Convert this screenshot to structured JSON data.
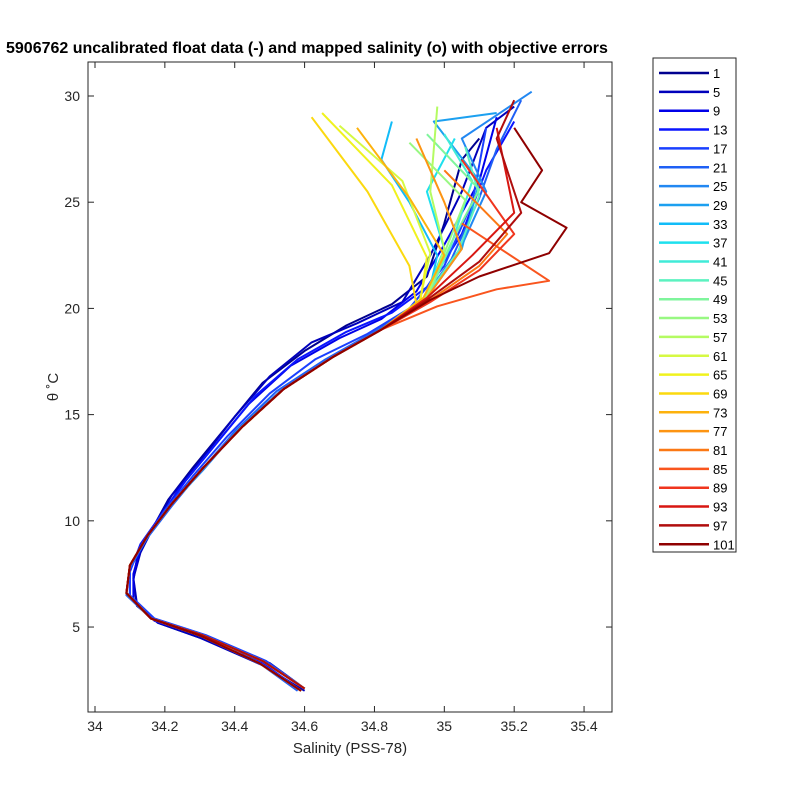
{
  "chart_data": {
    "type": "line",
    "title": "5906762 uncalibrated float data (-) and mapped salinity (o) with objective errors",
    "xlabel": "Salinity (PSS-78)",
    "ylabel": "θ ˚C",
    "xlim": [
      33.98,
      35.48
    ],
    "ylim": [
      1.0,
      31.6
    ],
    "xticks": [
      34,
      34.2,
      34.4,
      34.6,
      34.8,
      35,
      35.2,
      35.4
    ],
    "xtick_labels": [
      "34",
      "34.2",
      "34.4",
      "34.6",
      "34.8",
      "35",
      "35.2",
      "35.4"
    ],
    "yticks": [
      5,
      10,
      15,
      20,
      25,
      30
    ],
    "ytick_labels": [
      "5",
      "10",
      "15",
      "20",
      "25",
      "30"
    ],
    "grid": false,
    "legend_position": "outside-right",
    "legend_labels": [
      "1",
      "5",
      "9",
      "13",
      "17",
      "21",
      "25",
      "29",
      "33",
      "37",
      "41",
      "45",
      "49",
      "53",
      "57",
      "61",
      "65",
      "69",
      "73",
      "77",
      "81",
      "85",
      "89",
      "93",
      "97",
      "101"
    ],
    "series_colors": [
      "#00008f",
      "#0000bb",
      "#0000e8",
      "#0a15ff",
      "#1a40ff",
      "#1f60f5",
      "#2288f2",
      "#1ca0f0",
      "#12bcf8",
      "#1ee0ee",
      "#40ebd8",
      "#5cf2c0",
      "#7ff59c",
      "#98f882",
      "#b4fb62",
      "#d6f943",
      "#f0f21e",
      "#fbd90f",
      "#fdb20c",
      "#fd9412",
      "#fb7814",
      "#f9551e",
      "#f0351e",
      "#d81712",
      "#b00d0d",
      "#8f0000"
    ],
    "series": [
      {
        "name": "1",
        "x": [
          34.6,
          34.5,
          34.3,
          34.18,
          34.12,
          34.11,
          34.12,
          34.16,
          34.21,
          34.28,
          34.38,
          34.48,
          34.6,
          34.72,
          34.85,
          34.95,
          35.0,
          35.05,
          35.1
        ],
        "y": [
          2.1,
          3.3,
          4.5,
          5.2,
          6.0,
          7.2,
          8.2,
          9.5,
          11.0,
          12.5,
          14.5,
          16.5,
          18.0,
          19.2,
          20.2,
          21.5,
          24.0,
          27.0,
          28.0
        ]
      },
      {
        "name": "5",
        "x": [
          34.6,
          34.48,
          34.3,
          34.18,
          34.12,
          34.11,
          34.13,
          34.17,
          34.22,
          34.3,
          34.4,
          34.5,
          34.62,
          34.75,
          34.88,
          34.96,
          35.05,
          35.12,
          35.2
        ],
        "y": [
          2.0,
          3.2,
          4.5,
          5.2,
          6.1,
          7.3,
          8.5,
          9.8,
          11.2,
          12.8,
          14.9,
          16.8,
          18.4,
          19.3,
          20.3,
          22.5,
          25.5,
          28.5,
          29.5
        ]
      },
      {
        "name": "9",
        "x": [
          34.58,
          34.47,
          34.3,
          34.17,
          34.11,
          34.11,
          34.13,
          34.18,
          34.24,
          34.33,
          34.44,
          34.56,
          34.7,
          34.82,
          34.92,
          35.0,
          35.1,
          35.15
        ],
        "y": [
          2.1,
          3.4,
          4.6,
          5.3,
          6.3,
          7.5,
          8.7,
          10.0,
          11.5,
          13.3,
          15.5,
          17.3,
          18.6,
          19.5,
          20.8,
          23.0,
          26.0,
          29.0
        ]
      },
      {
        "name": "13",
        "x": [
          34.59,
          34.48,
          34.31,
          34.17,
          34.1,
          34.1,
          34.13,
          34.19,
          34.26,
          34.35,
          34.46,
          34.58,
          34.72,
          34.85,
          34.95,
          35.05,
          35.12,
          35.2
        ],
        "y": [
          2.0,
          3.3,
          4.6,
          5.3,
          6.4,
          7.6,
          8.9,
          10.3,
          11.9,
          13.7,
          15.9,
          17.6,
          18.9,
          19.8,
          21.0,
          23.5,
          26.5,
          28.8
        ]
      },
      {
        "name": "17",
        "x": [
          34.6,
          34.49,
          34.32,
          34.17,
          34.1,
          34.1,
          34.14,
          34.2,
          34.28,
          34.38,
          34.5,
          34.63,
          34.78,
          34.9,
          35.0,
          35.08,
          35.12
        ],
        "y": [
          2.1,
          3.4,
          4.6,
          5.4,
          6.5,
          7.7,
          9.0,
          10.5,
          12.1,
          14.0,
          16.0,
          17.6,
          18.8,
          20.0,
          22.0,
          25.0,
          28.5
        ]
      },
      {
        "name": "21",
        "x": [
          34.58,
          34.47,
          34.3,
          34.16,
          34.09,
          34.1,
          34.15,
          34.22,
          34.3,
          34.4,
          34.52,
          34.66,
          34.8,
          34.93,
          35.02,
          35.1,
          35.15,
          35.22
        ],
        "y": [
          2.0,
          3.3,
          4.6,
          5.4,
          6.5,
          7.8,
          9.2,
          10.7,
          12.3,
          14.2,
          16.1,
          17.6,
          18.9,
          20.2,
          22.3,
          25.2,
          27.5,
          29.8
        ]
      },
      {
        "name": "25",
        "x": [
          34.6,
          34.48,
          34.31,
          34.16,
          34.09,
          34.1,
          34.15,
          34.22,
          34.31,
          34.41,
          34.53,
          34.67,
          34.81,
          34.94,
          35.04,
          35.12,
          35.05,
          35.25
        ],
        "y": [
          2.1,
          3.4,
          4.6,
          5.4,
          6.6,
          7.9,
          9.3,
          10.8,
          12.4,
          14.3,
          16.1,
          17.6,
          18.9,
          20.4,
          22.6,
          25.5,
          28.0,
          30.2
        ]
      },
      {
        "name": "29",
        "x": [
          34.59,
          34.47,
          34.3,
          34.16,
          34.09,
          34.1,
          34.15,
          34.22,
          34.31,
          34.42,
          34.54,
          34.68,
          34.82,
          34.95,
          35.05,
          35.1,
          34.97,
          35.15
        ],
        "y": [
          2.0,
          3.3,
          4.6,
          5.4,
          6.6,
          7.9,
          9.3,
          10.8,
          12.5,
          14.4,
          16.2,
          17.7,
          19.0,
          20.5,
          22.8,
          26.0,
          28.8,
          29.2
        ]
      },
      {
        "name": "33",
        "x": [
          34.6,
          34.48,
          34.31,
          34.16,
          34.09,
          34.1,
          34.15,
          34.22,
          34.31,
          34.42,
          34.54,
          34.68,
          34.82,
          34.95,
          34.98,
          34.9,
          34.82,
          34.85
        ],
        "y": [
          2.1,
          3.4,
          4.6,
          5.4,
          6.6,
          7.9,
          9.3,
          10.8,
          12.5,
          14.4,
          16.2,
          17.7,
          19.0,
          20.3,
          22.5,
          25.0,
          27.0,
          28.8
        ]
      },
      {
        "name": "37",
        "x": [
          34.59,
          34.47,
          34.3,
          34.16,
          34.09,
          34.1,
          34.15,
          34.22,
          34.31,
          34.42,
          34.54,
          34.68,
          34.82,
          34.94,
          35.0,
          34.95,
          35.03
        ],
        "y": [
          2.0,
          3.3,
          4.6,
          5.4,
          6.6,
          7.9,
          9.3,
          10.8,
          12.5,
          14.4,
          16.2,
          17.7,
          19.0,
          20.4,
          22.8,
          25.5,
          28.0
        ]
      },
      {
        "name": "41",
        "x": [
          34.6,
          34.48,
          34.31,
          34.16,
          34.09,
          34.1,
          34.15,
          34.22,
          34.31,
          34.42,
          34.54,
          34.68,
          34.82,
          34.95,
          35.02,
          35.08,
          35.0
        ],
        "y": [
          2.1,
          3.4,
          4.6,
          5.4,
          6.6,
          7.9,
          9.3,
          10.8,
          12.5,
          14.4,
          16.2,
          17.7,
          19.0,
          20.5,
          23.0,
          26.0,
          28.2
        ]
      },
      {
        "name": "45",
        "x": [
          34.59,
          34.47,
          34.3,
          34.16,
          34.09,
          34.1,
          34.15,
          34.22,
          34.31,
          34.42,
          34.54,
          34.68,
          34.82,
          34.94,
          35.04,
          35.1,
          35.06
        ],
        "y": [
          2.0,
          3.3,
          4.6,
          5.4,
          6.6,
          7.9,
          9.3,
          10.8,
          12.5,
          14.4,
          16.2,
          17.7,
          19.0,
          20.4,
          22.7,
          25.3,
          27.6
        ]
      },
      {
        "name": "49",
        "x": [
          34.6,
          34.48,
          34.31,
          34.16,
          34.09,
          34.1,
          34.15,
          34.22,
          34.31,
          34.42,
          34.54,
          34.68,
          34.82,
          34.95,
          35.02,
          35.1,
          34.95
        ],
        "y": [
          2.1,
          3.4,
          4.6,
          5.4,
          6.6,
          7.9,
          9.3,
          10.8,
          12.5,
          14.4,
          16.2,
          17.7,
          19.0,
          20.5,
          23.1,
          25.6,
          28.2
        ]
      },
      {
        "name": "53",
        "x": [
          34.59,
          34.47,
          34.3,
          34.16,
          34.09,
          34.1,
          34.15,
          34.22,
          34.31,
          34.42,
          34.54,
          34.68,
          34.82,
          34.94,
          35.0,
          35.06,
          34.9
        ],
        "y": [
          2.0,
          3.3,
          4.6,
          5.4,
          6.6,
          7.9,
          9.3,
          10.8,
          12.5,
          14.4,
          16.2,
          17.7,
          19.0,
          20.4,
          22.6,
          25.1,
          27.8
        ]
      },
      {
        "name": "57",
        "x": [
          34.6,
          34.48,
          34.31,
          34.16,
          34.09,
          34.1,
          34.15,
          34.22,
          34.31,
          34.42,
          34.54,
          34.68,
          34.82,
          34.95,
          35.0,
          34.96,
          34.98
        ],
        "y": [
          2.1,
          3.4,
          4.6,
          5.4,
          6.6,
          7.9,
          9.3,
          10.8,
          12.5,
          14.4,
          16.2,
          17.7,
          19.0,
          20.5,
          22.8,
          25.5,
          29.5
        ]
      },
      {
        "name": "61",
        "x": [
          34.59,
          34.47,
          34.3,
          34.16,
          34.09,
          34.1,
          34.15,
          34.22,
          34.31,
          34.42,
          34.54,
          34.68,
          34.82,
          34.93,
          34.96,
          34.88,
          34.7
        ],
        "y": [
          2.0,
          3.3,
          4.6,
          5.4,
          6.6,
          7.9,
          9.3,
          10.8,
          12.5,
          14.4,
          16.2,
          17.7,
          19.0,
          20.4,
          22.6,
          26.0,
          28.6
        ]
      },
      {
        "name": "65",
        "x": [
          34.6,
          34.48,
          34.31,
          34.16,
          34.09,
          34.1,
          34.15,
          34.22,
          34.31,
          34.42,
          34.54,
          34.68,
          34.82,
          34.93,
          34.95,
          34.85,
          34.65
        ],
        "y": [
          2.1,
          3.4,
          4.6,
          5.4,
          6.6,
          7.9,
          9.3,
          10.8,
          12.5,
          14.4,
          16.2,
          17.7,
          19.0,
          20.2,
          22.4,
          25.8,
          29.2
        ]
      },
      {
        "name": "69",
        "x": [
          34.59,
          34.47,
          34.3,
          34.16,
          34.09,
          34.1,
          34.15,
          34.22,
          34.31,
          34.42,
          34.54,
          34.68,
          34.82,
          34.92,
          34.9,
          34.78,
          34.62
        ],
        "y": [
          2.0,
          3.3,
          4.6,
          5.4,
          6.6,
          7.9,
          9.3,
          10.8,
          12.5,
          14.4,
          16.2,
          17.7,
          19.0,
          20.2,
          22.0,
          25.5,
          29.0
        ]
      },
      {
        "name": "73",
        "x": [
          34.6,
          34.48,
          34.31,
          34.16,
          34.09,
          34.1,
          34.15,
          34.22,
          34.31,
          34.42,
          34.54,
          34.68,
          34.82,
          34.94,
          35.0,
          34.9,
          34.75
        ],
        "y": [
          2.1,
          3.4,
          4.6,
          5.4,
          6.6,
          7.9,
          9.3,
          10.8,
          12.5,
          14.4,
          16.2,
          17.7,
          19.0,
          20.5,
          22.5,
          25.2,
          28.5
        ]
      },
      {
        "name": "77",
        "x": [
          34.59,
          34.47,
          34.3,
          34.16,
          34.09,
          34.1,
          34.15,
          34.22,
          34.31,
          34.42,
          34.54,
          34.68,
          34.82,
          34.95,
          35.05,
          35.0,
          34.92
        ],
        "y": [
          2.0,
          3.3,
          4.6,
          5.4,
          6.6,
          7.9,
          9.3,
          10.8,
          12.5,
          14.4,
          16.2,
          17.7,
          19.0,
          20.5,
          22.8,
          25.0,
          28.0
        ]
      },
      {
        "name": "81",
        "x": [
          34.6,
          34.48,
          34.31,
          34.16,
          34.09,
          34.1,
          34.15,
          34.22,
          34.31,
          34.42,
          34.54,
          34.68,
          34.82,
          34.96,
          35.1,
          35.18,
          35.0
        ],
        "y": [
          2.1,
          3.4,
          4.6,
          5.4,
          6.6,
          7.9,
          9.3,
          10.8,
          12.5,
          14.4,
          16.2,
          17.7,
          19.0,
          20.4,
          22.0,
          23.5,
          26.5
        ]
      },
      {
        "name": "85",
        "x": [
          34.59,
          34.47,
          34.3,
          34.16,
          34.09,
          34.1,
          34.15,
          34.22,
          34.31,
          34.42,
          34.54,
          34.68,
          34.82,
          34.98,
          35.15,
          35.3,
          35.05
        ],
        "y": [
          2.0,
          3.3,
          4.6,
          5.4,
          6.6,
          7.9,
          9.3,
          10.8,
          12.5,
          14.4,
          16.2,
          17.7,
          19.0,
          20.1,
          20.9,
          21.3,
          24.0
        ]
      },
      {
        "name": "89",
        "x": [
          34.6,
          34.48,
          34.31,
          34.16,
          34.09,
          34.1,
          34.15,
          34.22,
          34.31,
          34.42,
          34.54,
          34.68,
          34.82,
          34.96,
          35.1,
          35.2,
          35.05
        ],
        "y": [
          2.1,
          3.4,
          4.6,
          5.4,
          6.6,
          7.9,
          9.3,
          10.8,
          12.5,
          14.4,
          16.2,
          17.7,
          19.0,
          20.3,
          21.8,
          23.5,
          27.0
        ]
      },
      {
        "name": "93",
        "x": [
          34.59,
          34.47,
          34.3,
          34.16,
          34.09,
          34.1,
          34.15,
          34.22,
          34.31,
          34.42,
          34.54,
          34.68,
          34.82,
          34.95,
          35.08,
          35.2,
          35.15
        ],
        "y": [
          2.0,
          3.3,
          4.6,
          5.4,
          6.6,
          7.9,
          9.3,
          10.8,
          12.5,
          14.4,
          16.2,
          17.7,
          19.0,
          20.5,
          22.5,
          24.5,
          28.5
        ]
      },
      {
        "name": "97",
        "x": [
          34.6,
          34.48,
          34.31,
          34.16,
          34.09,
          34.1,
          34.15,
          34.22,
          34.31,
          34.42,
          34.54,
          34.68,
          34.82,
          34.95,
          35.1,
          35.22,
          35.15,
          35.2
        ],
        "y": [
          2.1,
          3.4,
          4.6,
          5.4,
          6.6,
          7.9,
          9.3,
          10.8,
          12.5,
          14.4,
          16.2,
          17.7,
          19.0,
          20.4,
          22.2,
          24.5,
          28.0,
          29.8
        ]
      },
      {
        "name": "101",
        "x": [
          34.59,
          34.47,
          34.3,
          34.16,
          34.09,
          34.1,
          34.15,
          34.22,
          34.31,
          34.42,
          34.54,
          34.68,
          34.82,
          34.96,
          35.1,
          35.3,
          35.35,
          35.22,
          35.28,
          35.2
        ],
        "y": [
          2.0,
          3.3,
          4.6,
          5.4,
          6.6,
          7.9,
          9.3,
          10.8,
          12.5,
          14.4,
          16.2,
          17.7,
          19.0,
          20.4,
          21.5,
          22.6,
          23.8,
          25.0,
          26.5,
          28.5
        ]
      }
    ]
  }
}
